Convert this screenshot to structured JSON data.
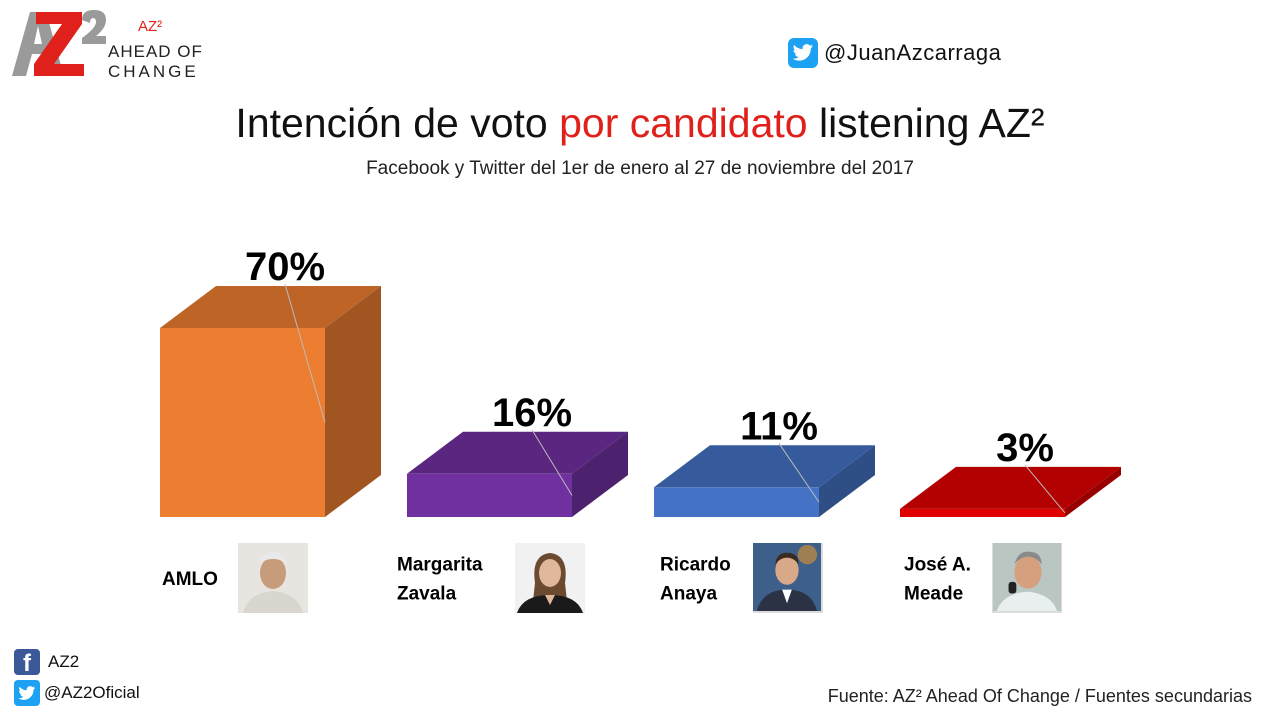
{
  "header": {
    "logo_mark": "AZ2",
    "logo_sup": "AZ²",
    "logo_line1": "AHEAD OF",
    "logo_line2": "CHANGE",
    "twitter_handle": "@JuanAzcarraga"
  },
  "title": {
    "part1": "Intención de voto ",
    "part2_highlight": "por candidato",
    "part3": " listening AZ²",
    "subtitle": "Facebook y Twitter del 1er de enero al 27 de noviembre del 2017"
  },
  "chart_data": {
    "type": "bar",
    "title": "Intención de voto por candidato listening AZ²",
    "subtitle": "Facebook y Twitter del 1er de enero al 27 de noviembre del 2017",
    "categories": [
      "AMLO",
      "Margarita Zavala",
      "Ricardo Anaya",
      "José A. Meade"
    ],
    "category_lines": [
      [
        "AMLO"
      ],
      [
        "Margarita",
        "Zavala"
      ],
      [
        "Ricardo",
        "Anaya"
      ],
      [
        "José A.",
        "Meade"
      ]
    ],
    "values": [
      70,
      16,
      11,
      3
    ],
    "value_labels": [
      "70%",
      "16%",
      "11%",
      "3%"
    ],
    "colors": [
      "#ed7d31",
      "#7030a0",
      "#4472c4",
      "#e00000"
    ],
    "ylim": [
      0,
      70
    ],
    "grid": false,
    "legend": "none"
  },
  "footer": {
    "facebook": "AZ2",
    "twitter": "@AZ2Oficial",
    "source": "Fuente: AZ² Ahead Of Change / Fuentes secundarias"
  },
  "colors": {
    "accent_red": "#e0201b",
    "twitter_blue": "#1da1f2",
    "facebook_blue": "#3b5998"
  }
}
